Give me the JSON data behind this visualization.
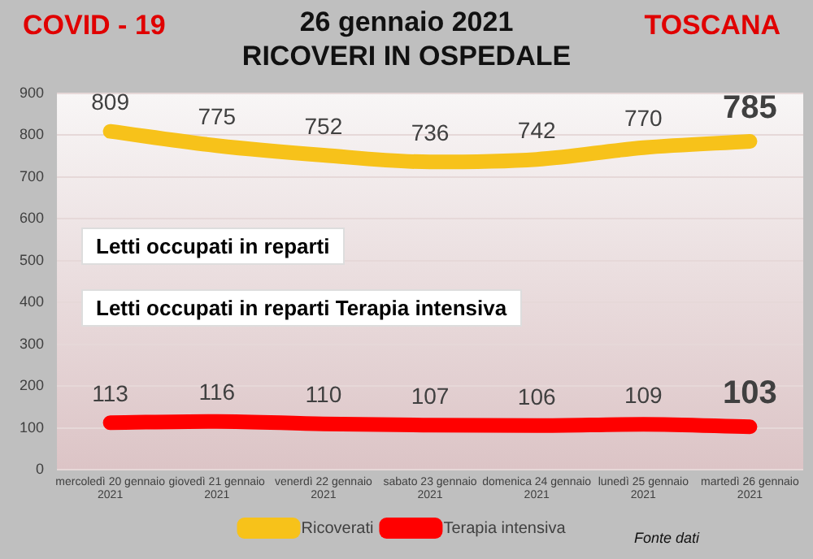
{
  "chart_data": {
    "type": "line",
    "title": "26 gennaio 2021",
    "subtitle": "RICOVERI IN OSPEDALE",
    "annotations": [
      "COVID - 19",
      "TOSCANA",
      "Letti occupati in reparti",
      "Letti occupati in reparti Terapia intensiva",
      "Fonte dati"
    ],
    "categories": [
      "mercoledì 20 gennaio 2021",
      "giovedì 21 gennaio 2021",
      "venerdì 22 gennaio 2021",
      "sabato 23 gennaio 2021",
      "domenica 24 gennaio 2021",
      "lunedì 25 gennaio 2021",
      "martedì 26 gennaio 2021"
    ],
    "series": [
      {
        "name": "Ricoverati",
        "color": "#f7c21a",
        "values": [
          809,
          775,
          752,
          736,
          742,
          770,
          785
        ]
      },
      {
        "name": "Terapia intensiva",
        "color": "#ff0000",
        "values": [
          113,
          116,
          110,
          107,
          106,
          109,
          103
        ]
      }
    ],
    "ylim": [
      0,
      900
    ],
    "yticks": [
      0,
      100,
      200,
      300,
      400,
      500,
      600,
      700,
      800,
      900
    ],
    "grid": "y",
    "legend": "bottom",
    "data_labels": true,
    "marker": "none",
    "line_style": "solid"
  }
}
